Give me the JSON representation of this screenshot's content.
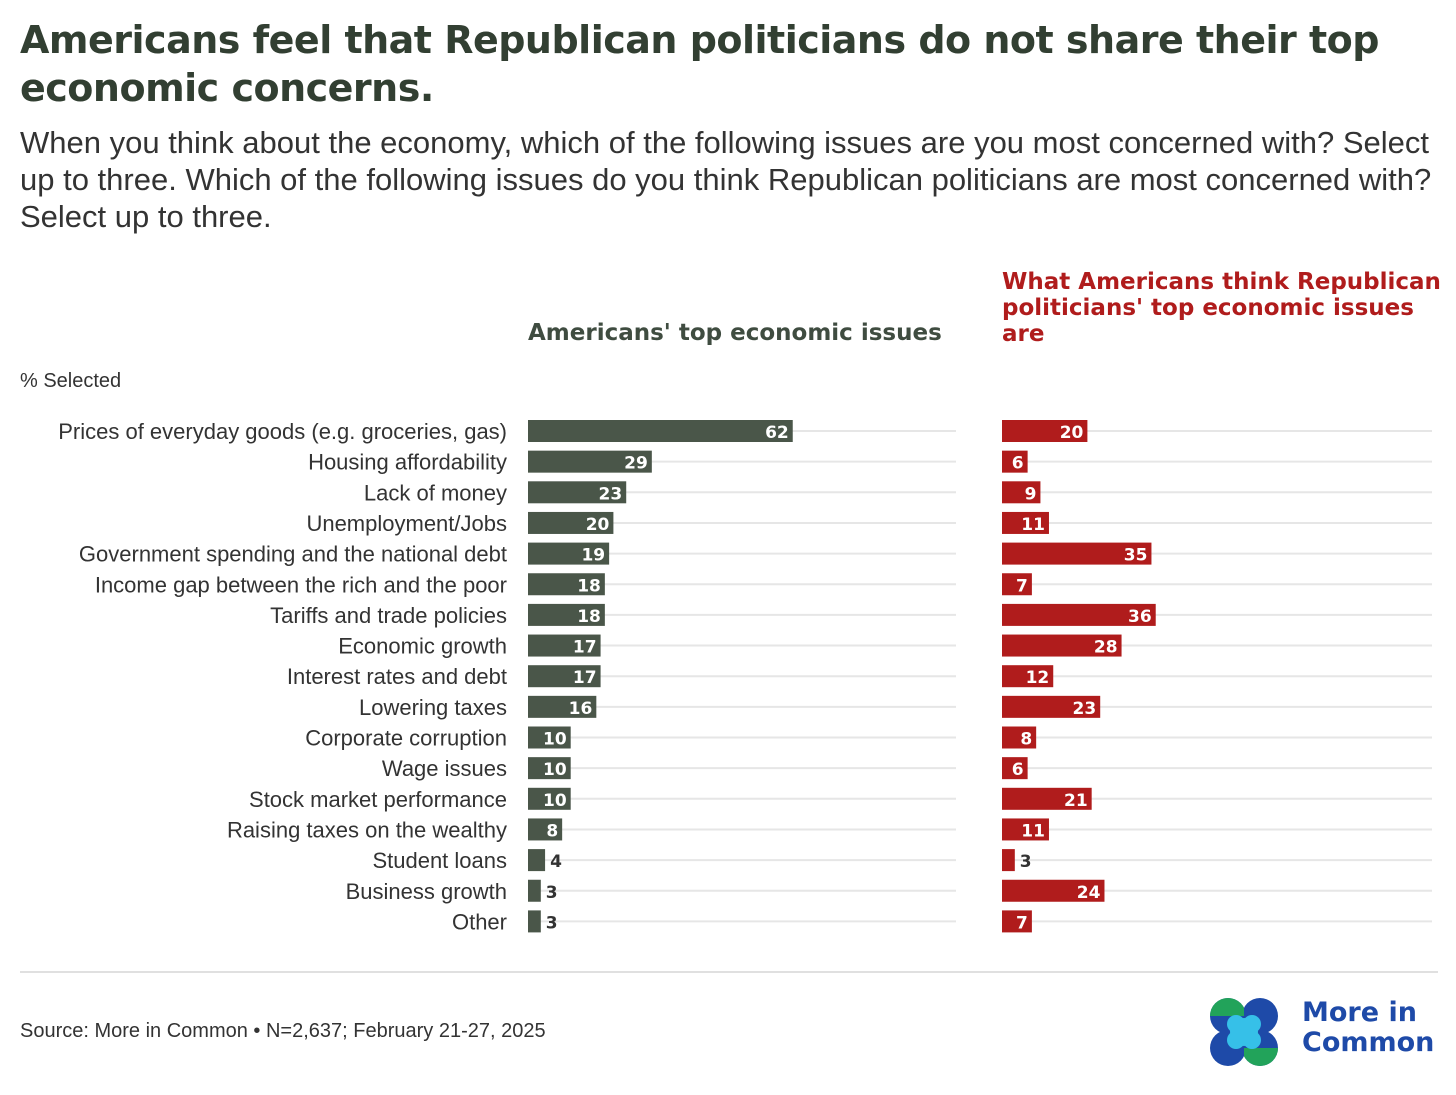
{
  "title": "Americans feel that Republican politicians do not share their top economic concerns.",
  "subtitle": "When you think about the economy, which of the following issues are you most concerned with? Select up to three. Which of the following issues do you think Republican politicians are most concerned with? Select up to three.",
  "pct_label": "% Selected",
  "source": "Source: More in Common • N=2,637; February 21-27, 2025",
  "logo": {
    "line1": "More in",
    "line2": "Common",
    "icon": "more-in-common-logo-icon"
  },
  "colors": {
    "left_bar": "#4a5649",
    "right_bar": "#b01c1c",
    "track": "#e6e6e6",
    "title": "#323f32"
  },
  "chart_data": {
    "type": "bar",
    "orientation": "horizontal",
    "categories": [
      "Prices of everyday goods (e.g. groceries, gas)",
      "Housing affordability",
      "Lack of money",
      "Unemployment/Jobs",
      "Government spending and the national debt",
      "Income gap between the rich and the poor",
      "Tariffs and trade policies",
      "Economic growth",
      "Interest rates and debt",
      "Lowering taxes",
      "Corporate corruption",
      "Wage issues",
      "Stock market performance",
      "Raising taxes on the wealthy",
      "Student loans",
      "Business growth",
      "Other"
    ],
    "series": [
      {
        "name": "Americans' top economic issues",
        "color": "#4a5649",
        "values": [
          62,
          29,
          23,
          20,
          19,
          18,
          18,
          17,
          17,
          16,
          10,
          10,
          10,
          8,
          4,
          3,
          3
        ]
      },
      {
        "name": "What Americans think Republican politicians' top economic issues are",
        "color": "#b01c1c",
        "values": [
          20,
          6,
          9,
          11,
          35,
          7,
          36,
          28,
          12,
          23,
          8,
          6,
          21,
          11,
          3,
          24,
          7
        ]
      }
    ],
    "xlim": [
      0,
      100
    ],
    "ylabel": "% Selected",
    "grid": false,
    "data_labels": true
  }
}
